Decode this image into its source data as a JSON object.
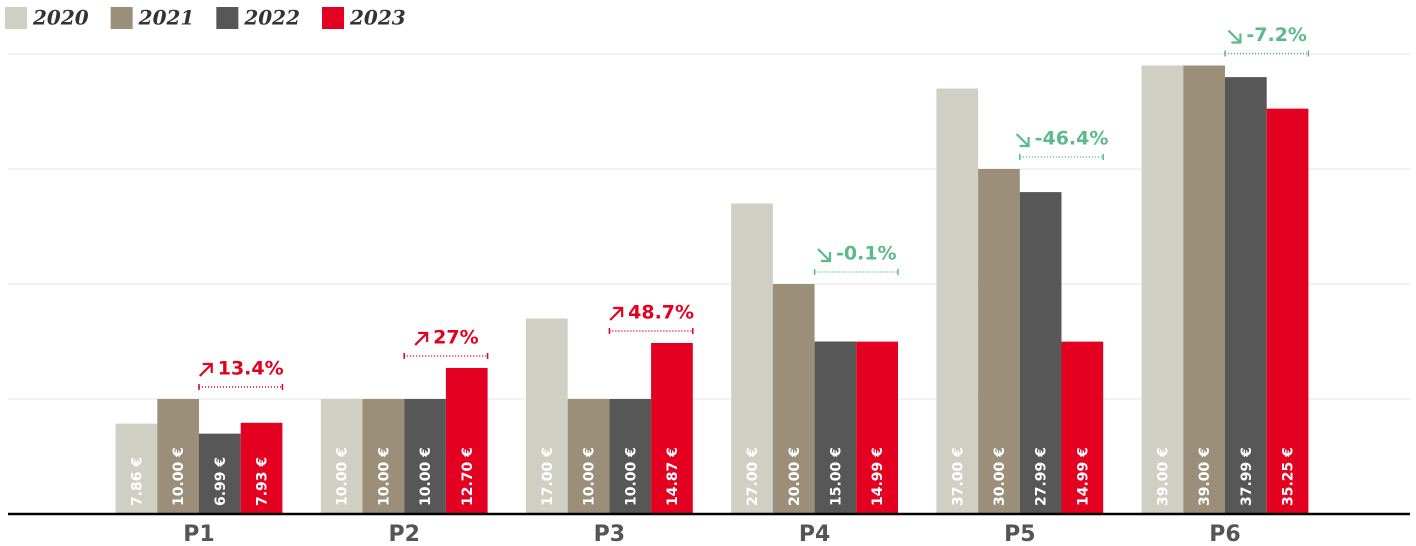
{
  "chart_data": {
    "type": "bar",
    "categories": [
      "P1",
      "P2",
      "P3",
      "P4",
      "P5",
      "P6"
    ],
    "series": [
      {
        "name": "2020",
        "color": "#cfcfc3",
        "values": [
          7.86,
          10,
          17,
          27,
          37,
          39
        ],
        "value_labels": [
          "7.86 €",
          "10.00 €",
          "17.00 €",
          "27.00 €",
          "37.00 €",
          "39.00 €"
        ]
      },
      {
        "name": "2021",
        "color": "#9b8f7a",
        "values": [
          10,
          10,
          10,
          20,
          30,
          39
        ],
        "value_labels": [
          "10.00 €",
          "10.00 €",
          "10.00 €",
          "20.00 €",
          "30.00 €",
          "39.00 €"
        ]
      },
      {
        "name": "2022",
        "color": "#575757",
        "values": [
          6.99,
          10,
          10,
          15,
          27.99,
          37.99
        ],
        "value_labels": [
          "6.99 €",
          "10.00 €",
          "10.00 €",
          "15.00 €",
          "27.99 €",
          "37.99 €"
        ]
      },
      {
        "name": "2023",
        "color": "#e30020",
        "values": [
          7.93,
          12.7,
          14.87,
          14.99,
          14.99,
          35.25
        ],
        "value_labels": [
          "7.93 €",
          "12.70 €",
          "14.87 €",
          "14.99 €",
          "14.99 €",
          "35.25 €"
        ]
      }
    ],
    "annotations": [
      {
        "text": "13.4%",
        "color": "#e30020",
        "direction": "up"
      },
      {
        "text": "27%",
        "color": "#e30020",
        "direction": "up"
      },
      {
        "text": "48.7%",
        "color": "#e30020",
        "direction": "up"
      },
      {
        "text": "-0.1%",
        "color": "#5cb98a",
        "direction": "down"
      },
      {
        "text": "-46.4%",
        "color": "#5cb98a",
        "direction": "down"
      },
      {
        "text": "-7.2%",
        "color": "#5cb98a",
        "direction": "down"
      }
    ],
    "ylim": [
      0,
      40
    ],
    "yticks": [
      10,
      20,
      30,
      40
    ],
    "grid": true,
    "legend": "top-left"
  }
}
